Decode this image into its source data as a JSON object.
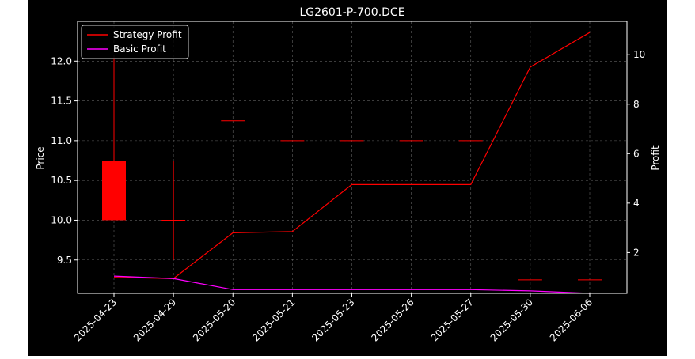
{
  "chart_data": {
    "type": "candlestick+line",
    "title": "LG2601-P-700.DCE",
    "ylabel_left": "Price",
    "ylabel_right": "Profit",
    "categories": [
      "2025-04-23",
      "2025-04-29",
      "2025-05-20",
      "2025-05-21",
      "2025-05-23",
      "2025-05-26",
      "2025-05-27",
      "2025-05-30",
      "2025-06-06"
    ],
    "price_ylim": [
      9.08,
      12.5
    ],
    "price_ticks": [
      9.5,
      10.0,
      10.5,
      11.0,
      11.5,
      12.0
    ],
    "profit_ylim": [
      0.35,
      11.35
    ],
    "profit_ticks": [
      2,
      4,
      6,
      8,
      10
    ],
    "candles": [
      {
        "open": 10.0,
        "high": 12.05,
        "low": 10.0,
        "close": 10.75
      },
      {
        "open": 10.0,
        "high": 10.75,
        "low": 9.5,
        "close": 10.0
      },
      {
        "open": 11.25,
        "high": 11.25,
        "low": 11.25,
        "close": 11.25
      },
      {
        "open": 11.0,
        "high": 11.0,
        "low": 11.0,
        "close": 11.0
      },
      {
        "open": 11.0,
        "high": 11.0,
        "low": 11.0,
        "close": 11.0
      },
      {
        "open": 11.0,
        "high": 11.0,
        "low": 11.0,
        "close": 11.0
      },
      {
        "open": 11.0,
        "high": 11.0,
        "low": 11.0,
        "close": 11.0
      },
      {
        "open": 9.25,
        "high": 9.25,
        "low": 9.25,
        "close": 9.25
      },
      {
        "open": 9.25,
        "high": 9.25,
        "low": 9.25,
        "close": 9.25
      }
    ],
    "series": [
      {
        "name": "Strategy Profit",
        "color": "#ff0000",
        "values": [
          1.0,
          0.95,
          2.8,
          2.85,
          4.75,
          4.75,
          4.75,
          9.5,
          10.9
        ]
      },
      {
        "name": "Basic Profit",
        "color": "#ff00ff",
        "values": [
          1.05,
          0.95,
          0.5,
          0.5,
          0.5,
          0.5,
          0.5,
          0.45,
          0.35
        ]
      }
    ],
    "candle_color": "#ff0000",
    "grid": true,
    "legend_position": "top-left"
  }
}
